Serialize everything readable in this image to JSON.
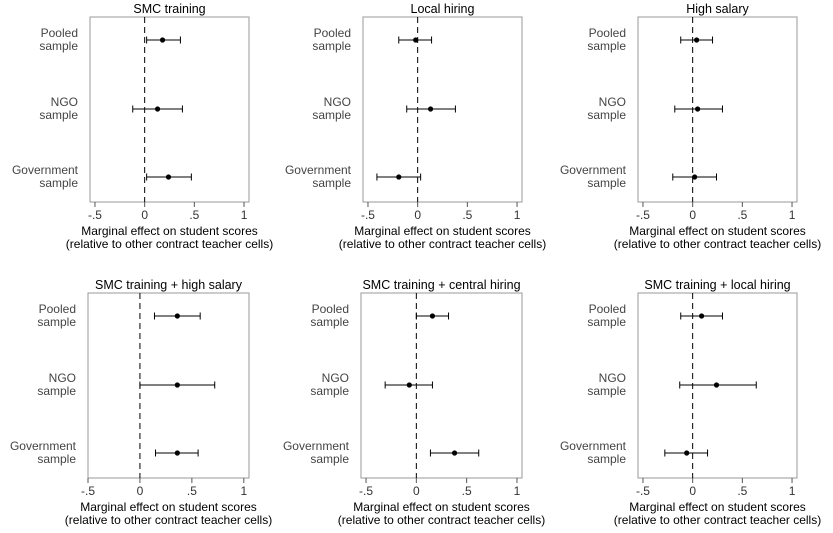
{
  "chart_data": [
    {
      "type": "scatter",
      "title": "SMC training",
      "categories": [
        "Pooled\nsample",
        "NGO\nsample",
        "Government\nsample"
      ],
      "estimates": [
        0.18,
        0.13,
        0.24
      ],
      "ci_low": [
        0.02,
        -0.12,
        0.02
      ],
      "ci_high": [
        0.36,
        0.38,
        0.47
      ],
      "xlim": [
        -0.55,
        1.05
      ],
      "xticks": [
        -0.5,
        0,
        0.5,
        1
      ],
      "xtick_labels": [
        "-.5",
        "0",
        ".5",
        "1"
      ],
      "xlabel": [
        "Marginal effect on student scores",
        "(relative to other contract teacher cells)"
      ],
      "reference_line": 0
    },
    {
      "type": "scatter",
      "title": "Local hiring",
      "categories": [
        "Pooled\nsample",
        "NGO\nsample",
        "Government\nsample"
      ],
      "estimates": [
        -0.02,
        0.13,
        -0.19
      ],
      "ci_low": [
        -0.19,
        -0.11,
        -0.41
      ],
      "ci_high": [
        0.14,
        0.38,
        0.03
      ],
      "xlim": [
        -0.55,
        1.05
      ],
      "xticks": [
        -0.5,
        0,
        0.5,
        1
      ],
      "xtick_labels": [
        "-.5",
        "0",
        ".5",
        "1"
      ],
      "xlabel": [
        "Marginal effect on student scores",
        "(relative to other contract teacher cells)"
      ],
      "reference_line": 0
    },
    {
      "type": "scatter",
      "title": "High salary",
      "categories": [
        "Pooled\nsample",
        "NGO\nsample",
        "Government\nsample"
      ],
      "estimates": [
        0.04,
        0.05,
        0.02
      ],
      "ci_low": [
        -0.12,
        -0.18,
        -0.2
      ],
      "ci_high": [
        0.2,
        0.3,
        0.24
      ],
      "xlim": [
        -0.55,
        1.05
      ],
      "xticks": [
        -0.5,
        0,
        0.5,
        1
      ],
      "xtick_labels": [
        "-.5",
        "0",
        ".5",
        "1"
      ],
      "xlabel": [
        "Marginal effect on student scores",
        "(relative to other contract teacher cells)"
      ],
      "reference_line": 0
    },
    {
      "type": "scatter",
      "title": "SMC training + high salary",
      "categories": [
        "Pooled\nsample",
        "NGO\nsample",
        "Government\nsample"
      ],
      "estimates": [
        0.36,
        0.36,
        0.36
      ],
      "ci_low": [
        0.14,
        0.0,
        0.15
      ],
      "ci_high": [
        0.58,
        0.72,
        0.56
      ],
      "xlim": [
        -0.5,
        1.05
      ],
      "xticks": [
        -0.5,
        0,
        0.5,
        1
      ],
      "xtick_labels": [
        "-.5",
        "0",
        ".5",
        "1"
      ],
      "xlabel": [
        "Marginal effect on student scores",
        "(relative to other contract teacher cells)"
      ],
      "reference_line": 0
    },
    {
      "type": "scatter",
      "title": "SMC training + central hiring",
      "categories": [
        "Pooled\nsample",
        "NGO\nsample",
        "Government\nsample"
      ],
      "estimates": [
        0.16,
        -0.07,
        0.38
      ],
      "ci_low": [
        0.0,
        -0.31,
        0.14
      ],
      "ci_high": [
        0.32,
        0.16,
        0.62
      ],
      "xlim": [
        -0.55,
        1.05
      ],
      "xticks": [
        -0.5,
        0,
        0.5,
        1
      ],
      "xtick_labels": [
        "-.5",
        "0",
        ".5",
        "1"
      ],
      "xlabel": [
        "Marginal effect on student scores",
        "(relative to other contract teacher cells)"
      ],
      "reference_line": 0
    },
    {
      "type": "scatter",
      "title": "SMC training + local hiring",
      "categories": [
        "Pooled\nsample",
        "NGO\nsample",
        "Government\nsample"
      ],
      "estimates": [
        0.09,
        0.24,
        -0.06
      ],
      "ci_low": [
        -0.12,
        -0.13,
        -0.28
      ],
      "ci_high": [
        0.3,
        0.64,
        0.15
      ],
      "xlim": [
        -0.55,
        1.05
      ],
      "xticks": [
        -0.5,
        0,
        0.5,
        1
      ],
      "xtick_labels": [
        "-.5",
        "0",
        ".5",
        "1"
      ],
      "xlabel": [
        "Marginal effect on student scores",
        "(relative to other contract teacher cells)"
      ],
      "reference_line": 0
    }
  ],
  "colors": {
    "marker": "#000000",
    "ci_line": "#000000",
    "frame": "#9a9a9a",
    "label_text": "#444444"
  }
}
